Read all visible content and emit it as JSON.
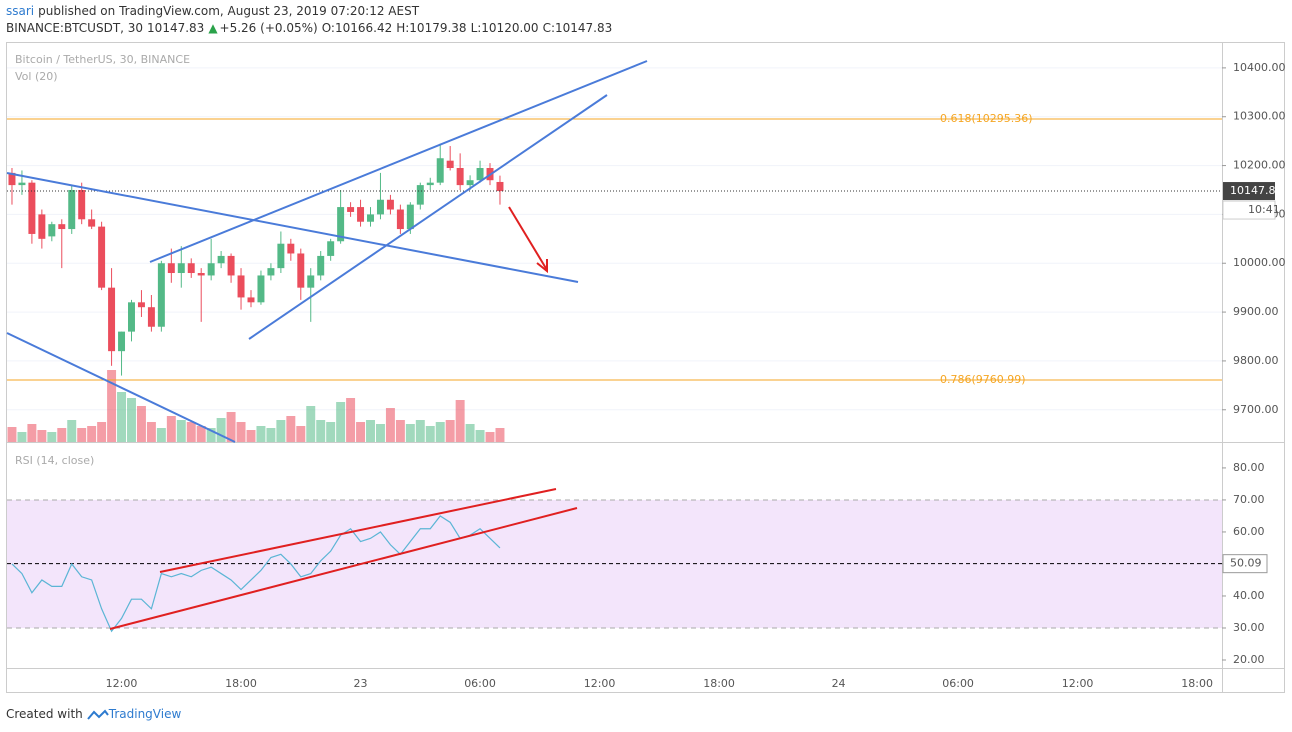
{
  "header": {
    "author": "ssari",
    "published": "published on TradingView.com, August 23, 2019 07:20:12 AEST",
    "symbol": "BINANCE:BTCUSDT, 30",
    "last": "10147.83",
    "change": "+5.26 (+0.05%)",
    "open": "O:10166.42",
    "high": "H:10179.38",
    "low": "L:10120.00",
    "close": "C:10147.83"
  },
  "footer": {
    "created": "Created with",
    "brand": "TradingView"
  },
  "chart_data": [
    {
      "type": "candlestick",
      "title": "Bitcoin / TetherUS, 30, BINANCE",
      "volume_label": "Vol (20)",
      "up_color": "#53b987",
      "down_color": "#eb4d5c",
      "categories": [
        null,
        null,
        null,
        null,
        null,
        null,
        null,
        null,
        null,
        null,
        null,
        "12:00",
        null,
        null,
        null,
        null,
        null,
        null,
        null,
        null,
        null,
        null,
        null,
        "18:00",
        null,
        null,
        null,
        null,
        null,
        null,
        null,
        null,
        null,
        null,
        null,
        "23",
        null,
        null,
        null,
        null,
        null,
        null,
        null,
        null,
        null,
        null,
        null,
        "06:00",
        null,
        null,
        null,
        null,
        null,
        null,
        null,
        null,
        null,
        null,
        null,
        "12:00",
        null,
        null,
        null,
        null,
        null,
        null,
        null,
        null,
        null,
        null,
        null,
        "18:00",
        null,
        null,
        null,
        null,
        null,
        null,
        null,
        null,
        null,
        null,
        null,
        "24",
        null,
        null,
        null,
        null,
        null,
        null,
        null,
        null,
        null,
        null,
        null,
        "06:00",
        null,
        null,
        null,
        null,
        null,
        null,
        null,
        null,
        null,
        null,
        null,
        "12:00",
        null,
        null,
        null,
        null,
        null,
        null,
        null,
        null,
        null,
        null,
        null,
        "18:00",
        null,
        null
      ],
      "open": [
        10185,
        10160,
        10165,
        10100,
        10055,
        10080,
        10070,
        10150,
        10090,
        10075,
        9950,
        9820,
        9860,
        9920,
        9910,
        9870,
        10000,
        9980,
        10000,
        9980,
        9975,
        10000,
        10015,
        9975,
        9930,
        9920,
        9975,
        9990,
        10040,
        10020,
        9950,
        9975,
        10015,
        10045,
        10115,
        10115,
        10085,
        10100,
        10130,
        10110,
        10070,
        10120,
        10160,
        10165,
        10210,
        10195,
        10160,
        10170,
        10195,
        10166.42,
        null,
        null,
        null,
        null,
        null,
        null,
        null,
        null,
        null,
        null,
        null,
        null,
        null,
        null,
        null,
        null,
        null,
        null,
        null,
        null,
        null,
        null,
        null,
        null,
        null,
        null,
        null,
        null,
        null,
        null,
        null,
        null,
        null,
        null,
        null,
        null,
        null,
        null,
        null,
        null,
        null,
        null,
        null,
        null,
        null,
        null,
        null,
        null,
        null,
        null,
        null,
        null,
        null,
        null,
        null,
        null,
        null,
        null,
        null,
        null,
        null,
        null,
        null,
        null,
        null,
        null,
        null,
        null,
        null,
        null,
        null,
        null
      ],
      "high": [
        10195,
        10190,
        10170,
        10110,
        10085,
        10090,
        10160,
        10165,
        10110,
        10085,
        9990,
        9860,
        9925,
        9945,
        9935,
        10005,
        10030,
        10035,
        10010,
        9990,
        10050,
        10025,
        10020,
        9990,
        9945,
        9985,
        10000,
        10065,
        10050,
        10030,
        9990,
        10025,
        10050,
        10150,
        10125,
        10130,
        10115,
        10185,
        10140,
        10120,
        10125,
        10165,
        10175,
        10245,
        10240,
        10225,
        10180,
        10210,
        10205,
        10179.38,
        null,
        null,
        null,
        null,
        null,
        null,
        null,
        null,
        null,
        null,
        null,
        null,
        null,
        null,
        null,
        null,
        null,
        null,
        null,
        null,
        null,
        null,
        null,
        null,
        null,
        null,
        null,
        null,
        null,
        null,
        null,
        null,
        null,
        null,
        null,
        null,
        null,
        null,
        null,
        null,
        null,
        null,
        null,
        null,
        null,
        null,
        null,
        null,
        null,
        null,
        null,
        null,
        null,
        null,
        null,
        null,
        null,
        null,
        null,
        null,
        null,
        null,
        null,
        null,
        null,
        null,
        null,
        null,
        null,
        null,
        null,
        null
      ],
      "low": [
        10120,
        10140,
        10040,
        10030,
        10045,
        9990,
        10060,
        10080,
        10070,
        9945,
        9790,
        9770,
        9840,
        9890,
        9860,
        9860,
        9960,
        9950,
        9970,
        9880,
        9965,
        9990,
        9960,
        9905,
        9910,
        9915,
        9965,
        9980,
        10005,
        9925,
        9880,
        9965,
        10005,
        10040,
        10095,
        10075,
        10075,
        10090,
        10100,
        10060,
        10060,
        10110,
        10150,
        10160,
        10190,
        10150,
        10150,
        10165,
        10160,
        10120,
        null,
        null,
        null,
        null,
        null,
        null,
        null,
        null,
        null,
        null,
        null,
        null,
        null,
        null,
        null,
        null,
        null,
        null,
        null,
        null,
        null,
        null,
        null,
        null,
        null,
        null,
        null,
        null,
        null,
        null,
        null,
        null,
        null,
        null,
        null,
        null,
        null,
        null,
        null,
        null,
        null,
        null,
        null,
        null,
        null,
        null,
        null,
        null,
        null,
        null,
        null,
        null,
        null,
        null,
        null,
        null,
        null,
        null,
        null,
        null,
        null,
        null,
        null,
        null,
        null,
        null,
        null,
        null,
        null,
        null,
        null,
        null
      ],
      "close": [
        10160,
        10165,
        10060,
        10050,
        10080,
        10070,
        10150,
        10090,
        10075,
        9950,
        9820,
        9860,
        9920,
        9910,
        9870,
        10000,
        9980,
        10000,
        9980,
        9975,
        10000,
        10015,
        9975,
        9930,
        9920,
        9975,
        9990,
        10040,
        10020,
        9950,
        9975,
        10015,
        10045,
        10115,
        10105,
        10085,
        10100,
        10130,
        10110,
        10070,
        10120,
        10160,
        10165,
        10215,
        10195,
        10160,
        10170,
        10195,
        10170,
        10147.83,
        null,
        null,
        null,
        null,
        null,
        null,
        null,
        null,
        null,
        null,
        null,
        null,
        null,
        null,
        null,
        null,
        null,
        null,
        null,
        null,
        null,
        null,
        null,
        null,
        null,
        null,
        null,
        null,
        null,
        null,
        null,
        null,
        null,
        null,
        null,
        null,
        null,
        null,
        null,
        null,
        null,
        null,
        null,
        null,
        null,
        null,
        null,
        null,
        null,
        null,
        null,
        null,
        null,
        null,
        null,
        null,
        null,
        null,
        null,
        null,
        null,
        null,
        null,
        null,
        null,
        null,
        null,
        null,
        null,
        null,
        null,
        null
      ],
      "volume": [
        15,
        10,
        18,
        12,
        10,
        14,
        22,
        14,
        16,
        20,
        72,
        50,
        44,
        36,
        20,
        14,
        26,
        22,
        20,
        16,
        14,
        24,
        30,
        20,
        12,
        16,
        14,
        22,
        26,
        16,
        36,
        22,
        20,
        40,
        44,
        20,
        22,
        18,
        34,
        22,
        18,
        22,
        16,
        20,
        22,
        42,
        18,
        12,
        10,
        14,
        null,
        null,
        null,
        null,
        null,
        null,
        null,
        null,
        null,
        null,
        null,
        null,
        null,
        null,
        null,
        null,
        null,
        null,
        null,
        null,
        null,
        null,
        null,
        null,
        null,
        null,
        null,
        null,
        null,
        null,
        null,
        null,
        null,
        null,
        null,
        null,
        null,
        null,
        null,
        null,
        null,
        null,
        null,
        null,
        null,
        null,
        null,
        null,
        null,
        null,
        null,
        null,
        null,
        null,
        null,
        null,
        null,
        null,
        null,
        null,
        null,
        null,
        null,
        null,
        null,
        null,
        null,
        null,
        null,
        null,
        null,
        null
      ],
      "ylim": [
        9634,
        10453
      ],
      "yticks": [
        {
          "value": 9700,
          "label": "9700.00"
        },
        {
          "value": 9800,
          "label": "9800.00"
        },
        {
          "value": 9900,
          "label": "9900.00"
        },
        {
          "value": 10000,
          "label": "10000.00"
        },
        {
          "value": 10100,
          "label": "10100.00"
        },
        {
          "value": 10200,
          "label": "10200.00"
        },
        {
          "value": 10300,
          "label": "10300.00"
        },
        {
          "value": 10400,
          "label": "10400.00"
        }
      ],
      "hlines": [
        {
          "value": 10295.36,
          "label": "0.618(10295.36)",
          "color": "#f5a623"
        },
        {
          "value": 9760.99,
          "label": "0.786(9760.99)",
          "color": "#f5a623"
        }
      ],
      "last_price": 10147.83,
      "countdown": "10:41"
    },
    {
      "type": "line",
      "title": "RSI (14, close)",
      "color": "#5bb5d5",
      "values": [
        50,
        47,
        41,
        45,
        43,
        43,
        50,
        46,
        45,
        36,
        29,
        33,
        39,
        39,
        36,
        47,
        46,
        47,
        46,
        48,
        49,
        47,
        45,
        42,
        45,
        48,
        52,
        53,
        50,
        46,
        47,
        51,
        54,
        59,
        61,
        57,
        58,
        60,
        56,
        53,
        57,
        61,
        61,
        65,
        63,
        58,
        59,
        61,
        58,
        55,
        null,
        null,
        null,
        null,
        null,
        null,
        null,
        null,
        null,
        null,
        null,
        null,
        null,
        null,
        null,
        null,
        null,
        null,
        null,
        null,
        null,
        null,
        null,
        null,
        null,
        null,
        null,
        null,
        null,
        null,
        null,
        null,
        null,
        null,
        null,
        null,
        null,
        null,
        null,
        null,
        null,
        null,
        null,
        null,
        null,
        null,
        null,
        null,
        null,
        null,
        null,
        null,
        null,
        null,
        null,
        null,
        null,
        null,
        null,
        null,
        null,
        null,
        null,
        null,
        null,
        null,
        null,
        null,
        null,
        null,
        null,
        null
      ],
      "ylim": [
        17.5,
        85.6
      ],
      "yticks": [
        {
          "value": 20,
          "label": "20.00"
        },
        {
          "value": 30,
          "label": "30.00"
        },
        {
          "value": 40,
          "label": "40.00"
        },
        {
          "value": 50,
          "label": "50.00"
        },
        {
          "value": 60,
          "label": "60.00"
        },
        {
          "value": 70,
          "label": "70.00"
        },
        {
          "value": 80,
          "label": "80.00"
        }
      ],
      "band": {
        "from": 30,
        "to": 70,
        "color": "#f3e5fb"
      },
      "hline": 50.09
    }
  ]
}
